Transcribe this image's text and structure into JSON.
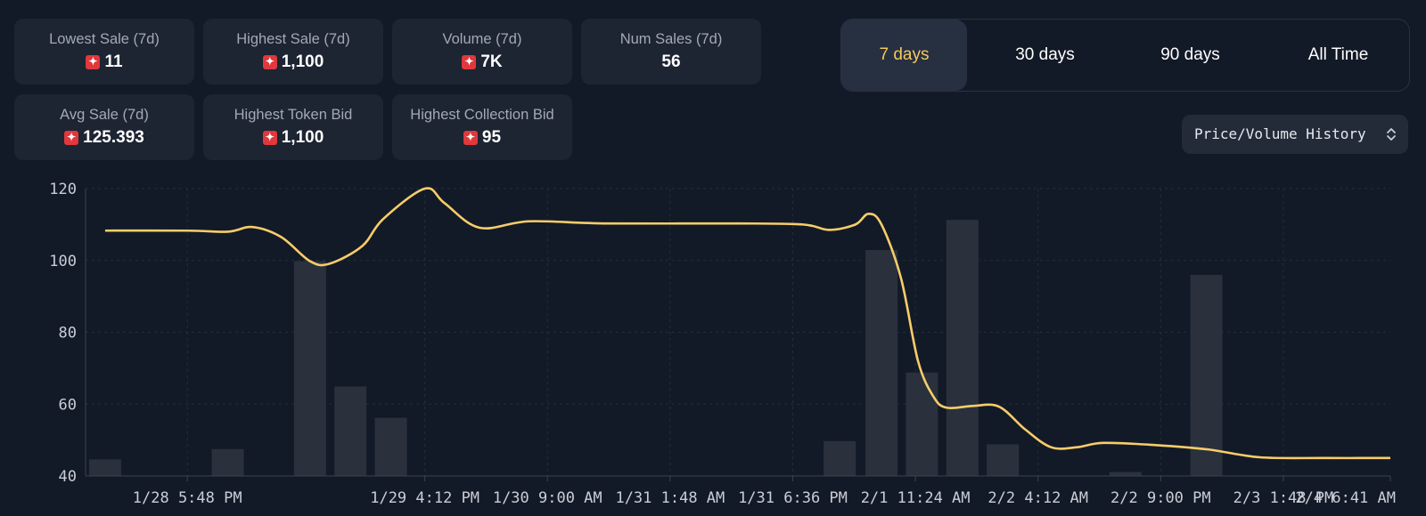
{
  "stats": [
    {
      "label": "Lowest Sale (7d)",
      "value": "11",
      "token": true
    },
    {
      "label": "Highest Sale (7d)",
      "value": "1,100",
      "token": true
    },
    {
      "label": "Volume (7d)",
      "value": "7K",
      "token": true
    },
    {
      "label": "Num Sales (7d)",
      "value": "56",
      "token": false
    },
    {
      "label": "Avg Sale (7d)",
      "value": "125.393",
      "token": true
    },
    {
      "label": "Highest Token Bid",
      "value": "1,100",
      "token": true
    },
    {
      "label": "Highest Collection Bid",
      "value": "95",
      "token": true
    }
  ],
  "ranges": [
    "7 days",
    "30 days",
    "90 days",
    "All Time"
  ],
  "active_range": "7 days",
  "view_select": {
    "value": "Price/Volume History"
  },
  "icons": {
    "token": "token-logo-icon",
    "select": "chevron-updown-icon"
  },
  "colors": {
    "accent": "#f4c95d",
    "line": "#f7cd6a",
    "bars": "#2a313d",
    "background": "#131a27"
  },
  "chart_data": {
    "type": "bar+line",
    "ylim": [
      40,
      120
    ],
    "yticks": [
      40,
      60,
      80,
      100,
      120
    ],
    "xlim": [
      0,
      1
    ],
    "xticks": [
      {
        "x": 0.078,
        "label": "1/28 5:48 PM"
      },
      {
        "x": 0.26,
        "label": "1/29 4:12 PM"
      },
      {
        "x": 0.354,
        "label": "1/30 9:00 AM"
      },
      {
        "x": 0.448,
        "label": "1/31 1:48 AM"
      },
      {
        "x": 0.542,
        "label": "1/31 6:36 PM"
      },
      {
        "x": 0.636,
        "label": "2/1 11:24 AM"
      },
      {
        "x": 0.73,
        "label": "2/2 4:12 AM"
      },
      {
        "x": 0.824,
        "label": "2/2 9:00 PM"
      },
      {
        "x": 0.918,
        "label": "2/3 1:48 PM"
      },
      {
        "x": 1.0,
        "label": "2/4 6:41 AM"
      }
    ],
    "grid": true,
    "bars": [
      {
        "x": 0.015,
        "value": 44.6
      },
      {
        "x": 0.109,
        "value": 47.5
      },
      {
        "x": 0.172,
        "value": 99.8
      },
      {
        "x": 0.203,
        "value": 64.9
      },
      {
        "x": 0.234,
        "value": 56.2
      },
      {
        "x": 0.578,
        "value": 49.7
      },
      {
        "x": 0.61,
        "value": 102.9
      },
      {
        "x": 0.641,
        "value": 68.8
      },
      {
        "x": 0.672,
        "value": 111.3
      },
      {
        "x": 0.703,
        "value": 48.8
      },
      {
        "x": 0.797,
        "value": 41.1
      },
      {
        "x": 0.859,
        "value": 96.0
      }
    ],
    "line": [
      {
        "x": 0.015,
        "y": 108.3
      },
      {
        "x": 0.078,
        "y": 108.3
      },
      {
        "x": 0.109,
        "y": 108.0
      },
      {
        "x": 0.128,
        "y": 109.3
      },
      {
        "x": 0.15,
        "y": 106.5
      },
      {
        "x": 0.172,
        "y": 99.8
      },
      {
        "x": 0.187,
        "y": 99.1
      },
      {
        "x": 0.212,
        "y": 104.0
      },
      {
        "x": 0.228,
        "y": 111.5
      },
      {
        "x": 0.26,
        "y": 120.0
      },
      {
        "x": 0.275,
        "y": 116.0
      },
      {
        "x": 0.302,
        "y": 109.1
      },
      {
        "x": 0.34,
        "y": 110.9
      },
      {
        "x": 0.4,
        "y": 110.3
      },
      {
        "x": 0.5,
        "y": 110.3
      },
      {
        "x": 0.55,
        "y": 110.0
      },
      {
        "x": 0.57,
        "y": 108.5
      },
      {
        "x": 0.59,
        "y": 110.0
      },
      {
        "x": 0.6,
        "y": 113.0
      },
      {
        "x": 0.61,
        "y": 110.0
      },
      {
        "x": 0.625,
        "y": 95.0
      },
      {
        "x": 0.638,
        "y": 72.0
      },
      {
        "x": 0.65,
        "y": 62.0
      },
      {
        "x": 0.66,
        "y": 59.0
      },
      {
        "x": 0.68,
        "y": 59.5
      },
      {
        "x": 0.7,
        "y": 59.3
      },
      {
        "x": 0.72,
        "y": 53.0
      },
      {
        "x": 0.74,
        "y": 48.0
      },
      {
        "x": 0.76,
        "y": 48.0
      },
      {
        "x": 0.78,
        "y": 49.2
      },
      {
        "x": 0.82,
        "y": 48.6
      },
      {
        "x": 0.86,
        "y": 47.4
      },
      {
        "x": 0.9,
        "y": 45.2
      },
      {
        "x": 0.95,
        "y": 45.0
      },
      {
        "x": 1.0,
        "y": 45.0
      }
    ]
  }
}
